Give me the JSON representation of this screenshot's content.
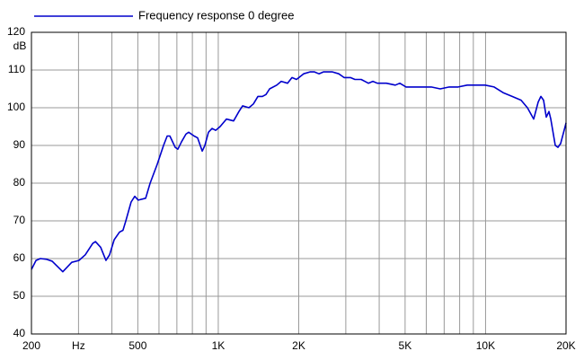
{
  "chart_data": {
    "type": "line",
    "y_label": "dB",
    "xscale": "log",
    "grid": true,
    "legend": "top-left",
    "xlim": [
      200,
      20000
    ],
    "ylim": [
      40,
      120
    ],
    "yticks": [
      40,
      50,
      60,
      70,
      80,
      90,
      100,
      110,
      120
    ],
    "xticks": [
      {
        "value": 200,
        "label": "200"
      },
      {
        "value": 300,
        "label": "Hz"
      },
      {
        "value": 500,
        "label": "500"
      },
      {
        "value": 1000,
        "label": "1K"
      },
      {
        "value": 2000,
        "label": "2K"
      },
      {
        "value": 5000,
        "label": "5K"
      },
      {
        "value": 10000,
        "label": "10K"
      },
      {
        "value": 20000,
        "label": "20K"
      }
    ],
    "xminor": [
      400,
      600,
      700,
      800,
      900,
      3000,
      4000,
      6000,
      7000,
      8000,
      9000
    ],
    "x": [
      200,
      208,
      216,
      228,
      239,
      262,
      283,
      301,
      318,
      339,
      347,
      363,
      380,
      392,
      408,
      427,
      440,
      451,
      472,
      487,
      502,
      535,
      556,
      591,
      624,
      644,
      659,
      690,
      706,
      729,
      757,
      775,
      812,
      837,
      871,
      891,
      919,
      948,
      978,
      1016,
      1073,
      1141,
      1195,
      1233,
      1302,
      1353,
      1407,
      1462,
      1508,
      1556,
      1655,
      1720,
      1816,
      1887,
      1962,
      2086,
      2204,
      2290,
      2380,
      2474,
      2674,
      2823,
      2956,
      3122,
      3245,
      3425,
      3532,
      3644,
      3788,
      3936,
      4254,
      4596,
      4777,
      5043,
      5366,
      5798,
      6264,
      6767,
      7311,
      7899,
      8535,
      9221,
      9965,
      10767,
      11633,
      12569,
      13580,
      14340,
      15138,
      15734,
      16104,
      16482,
      16870,
      17266,
      17538,
      18230,
      18652,
      19091,
      19844,
      20000
    ],
    "series": [
      {
        "name": "Frequency response 0 degree",
        "color": "#0000cc",
        "values": [
          57.1,
          59.5,
          60,
          59.8,
          59.3,
          56.5,
          59,
          59.5,
          61,
          64,
          64.5,
          63,
          59.5,
          61,
          65,
          67,
          67.5,
          70,
          75,
          76.5,
          75.5,
          76,
          80,
          85,
          90,
          92.5,
          92.5,
          89.5,
          89,
          91,
          93,
          93.5,
          92.5,
          92,
          88.5,
          90,
          93.5,
          94.5,
          94,
          95,
          97,
          96.5,
          99,
          100.5,
          100,
          101,
          103,
          103,
          103.5,
          105,
          106,
          107,
          106.5,
          108,
          107.5,
          109,
          109.5,
          109.5,
          109,
          109.5,
          109.5,
          109,
          108,
          108,
          107.5,
          107.5,
          107,
          106.5,
          107,
          106.5,
          106.5,
          106,
          106.5,
          105.5,
          105.5,
          105.5,
          105.5,
          105,
          105.5,
          105.5,
          106,
          106,
          106,
          105.5,
          104,
          103,
          102,
          100,
          97,
          101.5,
          103,
          102,
          97.5,
          99,
          97,
          90,
          89.5,
          90.5,
          95,
          96
        ]
      }
    ]
  }
}
